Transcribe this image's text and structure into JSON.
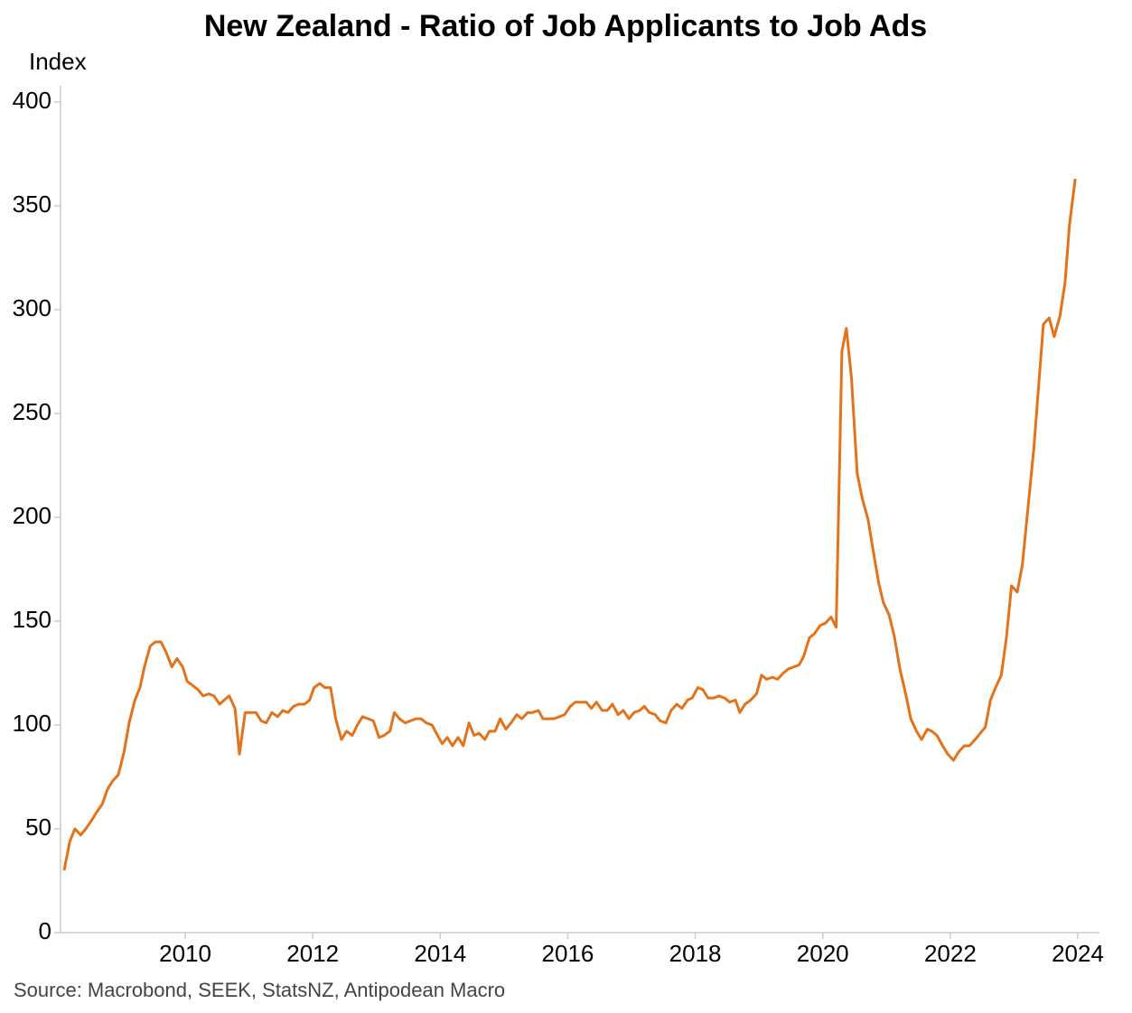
{
  "chart_data": {
    "type": "line",
    "title": "New Zealand - Ratio of Job Applicants to Job Ads",
    "y_label": "Index",
    "source": "Source: Macrobond, SEEK, StatsNZ, Antipodean Macro",
    "xlim": [
      2008,
      2024.34
    ],
    "xticks": [
      2010,
      2012,
      2014,
      2016,
      2018,
      2020,
      2022,
      2024
    ],
    "ylim": [
      0,
      408
    ],
    "yticks": [
      0,
      50,
      100,
      150,
      200,
      250,
      300,
      350,
      400
    ],
    "grid": false,
    "series": [
      {
        "color": "#e3731b",
        "x": [
          2008.1,
          2008.19,
          2008.27,
          2008.36,
          2008.44,
          2008.53,
          2008.61,
          2008.7,
          2008.78,
          2008.86,
          2008.95,
          2009.04,
          2009.12,
          2009.21,
          2009.29,
          2009.36,
          2009.45,
          2009.53,
          2009.62,
          2009.7,
          2009.79,
          2009.87,
          2009.96,
          2010.03,
          2010.12,
          2010.2,
          2010.28,
          2010.37,
          2010.45,
          2010.54,
          2010.61,
          2010.69,
          2010.78,
          2010.85,
          2010.94,
          2011.02,
          2011.11,
          2011.19,
          2011.27,
          2011.36,
          2011.45,
          2011.53,
          2011.61,
          2011.7,
          2011.78,
          2011.87,
          2011.95,
          2012.02,
          2012.11,
          2012.19,
          2012.28,
          2012.36,
          2012.45,
          2012.53,
          2012.62,
          2012.7,
          2012.78,
          2012.87,
          2012.95,
          2013.04,
          2013.12,
          2013.21,
          2013.28,
          2013.36,
          2013.45,
          2013.53,
          2013.62,
          2013.7,
          2013.78,
          2013.87,
          2013.94,
          2014.03,
          2014.11,
          2014.19,
          2014.28,
          2014.36,
          2014.45,
          2014.53,
          2014.61,
          2014.7,
          2014.77,
          2014.86,
          2014.94,
          2015.03,
          2015.11,
          2015.2,
          2015.28,
          2015.37,
          2015.45,
          2015.54,
          2015.61,
          2015.7,
          2015.78,
          2015.87,
          2015.95,
          2016.04,
          2016.12,
          2016.2,
          2016.29,
          2016.37,
          2016.45,
          2016.54,
          2016.62,
          2016.7,
          2016.79,
          2016.87,
          2016.96,
          2017.04,
          2017.13,
          2017.2,
          2017.28,
          2017.37,
          2017.45,
          2017.54,
          2017.62,
          2017.71,
          2017.79,
          2017.88,
          2017.95,
          2018.04,
          2018.12,
          2018.2,
          2018.29,
          2018.37,
          2018.46,
          2018.54,
          2018.63,
          2018.7,
          2018.78,
          2018.87,
          2018.96,
          2019.04,
          2019.12,
          2019.21,
          2019.29,
          2019.38,
          2019.46,
          2019.55,
          2019.63,
          2019.7,
          2019.79,
          2019.87,
          2019.96,
          2020.04,
          2020.13,
          2020.21,
          2020.3,
          2020.37,
          2020.45,
          2020.54,
          2020.62,
          2020.71,
          2020.79,
          2020.88,
          2020.95,
          2021.04,
          2021.12,
          2021.21,
          2021.3,
          2021.38,
          2021.47,
          2021.55,
          2021.64,
          2021.71,
          2021.79,
          2021.88,
          2021.96,
          2022.05,
          2022.13,
          2022.22,
          2022.3,
          2022.39,
          2022.47,
          2022.55,
          2022.63,
          2022.71,
          2022.8,
          2022.88,
          2022.96,
          2023.05,
          2023.13,
          2023.22,
          2023.31,
          2023.38,
          2023.46,
          2023.55,
          2023.63,
          2023.72,
          2023.8,
          2023.87,
          2023.96
        ],
        "values": [
          30,
          44,
          50,
          47,
          50,
          54,
          58,
          62,
          69,
          73,
          76,
          87,
          101,
          112,
          118,
          128,
          138,
          140,
          140,
          135,
          128,
          132,
          128,
          121,
          119,
          117,
          114,
          115,
          114,
          110,
          112,
          114,
          108,
          86,
          106,
          106,
          106,
          102,
          101,
          106,
          104,
          107,
          106,
          109,
          110,
          110,
          112,
          118,
          120,
          118,
          118,
          103,
          93,
          97,
          95,
          100,
          104,
          103,
          102,
          94,
          95,
          97,
          106,
          103,
          101,
          102,
          103,
          103,
          101,
          100,
          96,
          91,
          94,
          90,
          94,
          90,
          101,
          95,
          96,
          93,
          97,
          97,
          103,
          98,
          101,
          105,
          103,
          106,
          106,
          107,
          103,
          103,
          103,
          104,
          105,
          109,
          111,
          111,
          111,
          108,
          111,
          107,
          107,
          110,
          105,
          107,
          103,
          106,
          107,
          109,
          106,
          105,
          102,
          101,
          107,
          110,
          108,
          112,
          113,
          118,
          117,
          113,
          113,
          114,
          113,
          111,
          112,
          106,
          110,
          112,
          115,
          124,
          122,
          123,
          122,
          125,
          127,
          128,
          129,
          133,
          142,
          144,
          148,
          149,
          152,
          147,
          280,
          291,
          267,
          221,
          209,
          199,
          184,
          168,
          159,
          153,
          143,
          127,
          115,
          103,
          97,
          93,
          98,
          97,
          95,
          90,
          86,
          83,
          87,
          90,
          90,
          93,
          96,
          99,
          112,
          118,
          124,
          142,
          167,
          164,
          177,
          205,
          233,
          261,
          293,
          296,
          287,
          297,
          313,
          341,
          363
        ]
      }
    ]
  }
}
